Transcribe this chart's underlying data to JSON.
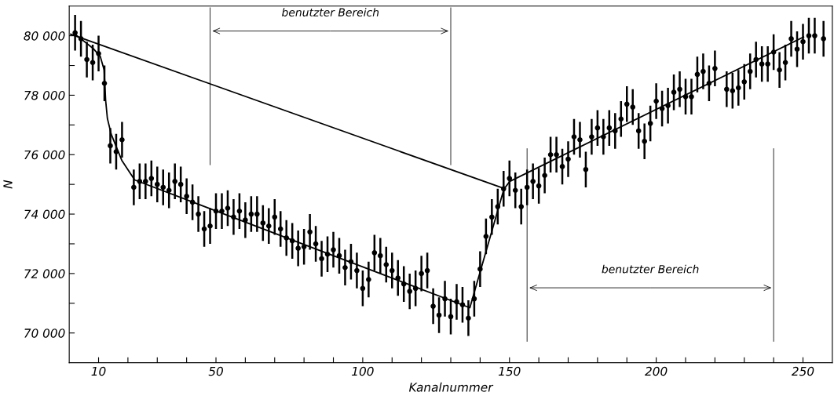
{
  "chart_data": {
    "type": "scatter",
    "xlabel": "Kanalnummer",
    "ylabel": "N",
    "xlim": [
      0,
      260
    ],
    "ylim": [
      69000,
      81000
    ],
    "xticks": [
      10,
      {
        "value": 20,
        "label": null
      },
      {
        "value": 30,
        "label": null
      },
      {
        "value": 40,
        "label": null
      },
      50,
      {
        "value": 60,
        "label": null
      },
      {
        "value": 70,
        "label": null
      },
      {
        "value": 80,
        "label": null
      },
      {
        "value": 90,
        "label": null
      },
      100,
      {
        "value": 110,
        "label": null
      },
      {
        "value": 120,
        "label": null
      },
      {
        "value": 130,
        "label": null
      },
      {
        "value": 140,
        "label": null
      },
      150,
      {
        "value": 160,
        "label": null
      },
      {
        "value": 170,
        "label": null
      },
      {
        "value": 180,
        "label": null
      },
      {
        "value": 190,
        "label": null
      },
      200,
      {
        "value": 210,
        "label": null
      },
      {
        "value": 220,
        "label": null
      },
      {
        "value": 230,
        "label": null
      },
      {
        "value": 240,
        "label": null
      },
      250
    ],
    "yticks": [
      {
        "value": 70000,
        "label": "70 000"
      },
      {
        "value": 71000,
        "label": null
      },
      {
        "value": 72000,
        "label": "72 000"
      },
      {
        "value": 73000,
        "label": null
      },
      {
        "value": 74000,
        "label": "74 000"
      },
      {
        "value": 75000,
        "label": null
      },
      {
        "value": 76000,
        "label": "76 000"
      },
      {
        "value": 77000,
        "label": null
      },
      {
        "value": 78000,
        "label": "78 000"
      },
      {
        "value": 79000,
        "label": null
      },
      {
        "value": 80000,
        "label": "80 000"
      }
    ],
    "grid": false,
    "legend": false,
    "ref_lines": [
      {
        "axis": "x",
        "value": 48,
        "color": "#000000"
      },
      {
        "axis": "x",
        "value": 130,
        "color": "#000000"
      },
      {
        "axis": "x",
        "value": 156,
        "color": "#000000"
      },
      {
        "axis": "x",
        "value": 240,
        "color": "#000000"
      }
    ],
    "annotations": [
      "benutzter Bereich",
      "benutzter Bereich"
    ],
    "series": [
      {
        "marker": "circle",
        "color": "#000000",
        "x": [
          2,
          4,
          6,
          8,
          10,
          12,
          14,
          16,
          18,
          22,
          24,
          26,
          28,
          30,
          32,
          34,
          36,
          38,
          40,
          42,
          44,
          46,
          48,
          50,
          52,
          54,
          56,
          58,
          60,
          62,
          64,
          66,
          68,
          70,
          72,
          74,
          76,
          78,
          80,
          82,
          84,
          86,
          88,
          90,
          92,
          94,
          96,
          98,
          100,
          102,
          104,
          106,
          108,
          110,
          112,
          114,
          116,
          118,
          120,
          122,
          124,
          126,
          128,
          130,
          132,
          134,
          136,
          138,
          140,
          142,
          144,
          146,
          148,
          150,
          152,
          154,
          156,
          158,
          160,
          162,
          164,
          166,
          168,
          170,
          172,
          174,
          176,
          178,
          180,
          182,
          184,
          186,
          188,
          190,
          192,
          194,
          196,
          198,
          200,
          202,
          204,
          206,
          208,
          210,
          212,
          214,
          216,
          218,
          220,
          224,
          226,
          228,
          230,
          232,
          234,
          236,
          238,
          240,
          242,
          244,
          246,
          248,
          250,
          252,
          254,
          257
        ],
        "values": [
          80100,
          79900,
          79200,
          79100,
          79400,
          78400,
          76300,
          76100,
          76500,
          74900,
          75100,
          75100,
          75200,
          75000,
          74900,
          74800,
          75100,
          75000,
          74600,
          74400,
          74000,
          73500,
          73600,
          74100,
          74100,
          74200,
          73900,
          74100,
          73800,
          74000,
          74000,
          73700,
          73600,
          73900,
          73500,
          73200,
          73100,
          72850,
          72900,
          73400,
          73000,
          72500,
          72650,
          72800,
          72600,
          72200,
          72400,
          72100,
          71500,
          71800,
          72700,
          72600,
          72300,
          72100,
          71850,
          71650,
          71400,
          71500,
          72000,
          72100,
          70900,
          70600,
          71150,
          70550,
          71050,
          70950,
          70500,
          71150,
          72150,
          73250,
          73900,
          74250,
          74850,
          75200,
          74800,
          74250,
          74900,
          75100,
          74950,
          75300,
          76000,
          76000,
          75600,
          75850,
          76600,
          76500,
          75500,
          76600,
          76900,
          76600,
          76900,
          76800,
          77200,
          77700,
          77600,
          76800,
          76450,
          77050,
          77800,
          77550,
          77650,
          78100,
          78200,
          77950,
          77950,
          78700,
          78800,
          78400,
          78900,
          78200,
          78150,
          78250,
          78450,
          78800,
          79200,
          79050,
          79050,
          79450,
          78850,
          79100,
          79900,
          79550,
          79800,
          80000,
          80000,
          79900
        ],
        "errors": [
          600,
          600,
          600,
          600,
          600,
          600,
          600,
          600,
          600,
          600,
          600,
          600,
          600,
          600,
          600,
          600,
          600,
          600,
          600,
          600,
          600,
          600,
          600,
          600,
          600,
          600,
          600,
          600,
          600,
          600,
          600,
          600,
          600,
          600,
          600,
          600,
          600,
          600,
          600,
          600,
          600,
          600,
          600,
          600,
          600,
          600,
          600,
          600,
          600,
          600,
          600,
          600,
          600,
          600,
          600,
          600,
          600,
          600,
          600,
          600,
          600,
          600,
          600,
          600,
          600,
          600,
          600,
          600,
          600,
          600,
          600,
          600,
          600,
          600,
          600,
          600,
          600,
          600,
          600,
          600,
          600,
          600,
          600,
          600,
          600,
          600,
          600,
          600,
          600,
          600,
          600,
          600,
          600,
          600,
          600,
          600,
          600,
          600,
          600,
          600,
          600,
          600,
          600,
          600,
          600,
          600,
          600,
          600,
          600,
          600,
          600,
          600,
          600,
          600,
          600,
          600,
          600,
          600,
          600,
          600,
          600,
          600,
          600,
          600,
          600,
          600
        ]
      },
      {
        "type": "line",
        "marker": "none",
        "color": "#000000",
        "x": [
          2,
          8.3,
          10.6,
          11.9,
          12.4,
          13,
          14.3,
          17.9,
          22.3,
          136.5,
          148.1,
          150.1,
          250.2
        ],
        "values": [
          80050,
          79560,
          79300,
          78850,
          77840,
          77220,
          76690,
          75810,
          75150,
          70850,
          74840,
          75100,
          79960
        ]
      },
      {
        "type": "line",
        "marker": "none",
        "color": "#000000",
        "x": [
          0.5,
          148.5
        ],
        "values": [
          80050,
          74850
        ]
      }
    ]
  }
}
